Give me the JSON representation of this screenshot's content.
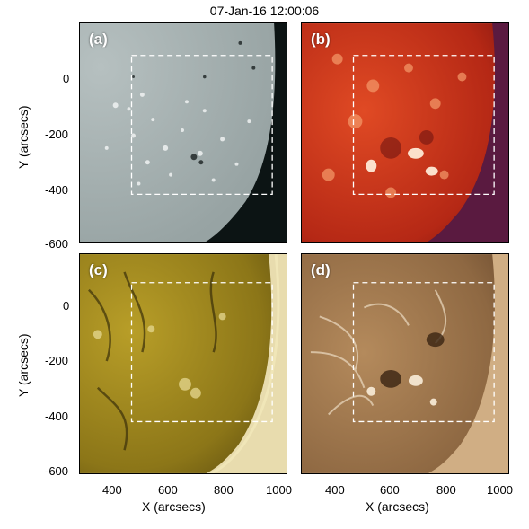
{
  "title": "07-Jan-16 12:00:06",
  "panels": [
    {
      "label": "(a)",
      "kind": "magnetogram"
    },
    {
      "label": "(b)",
      "kind": "euv-red"
    },
    {
      "label": "(c)",
      "kind": "euv-yellow"
    },
    {
      "label": "(d)",
      "kind": "euv-brown"
    }
  ],
  "axes": {
    "ylabel": "Y (arcsecs)",
    "xlabel": "X (arcsecs)",
    "yticks": [
      "0",
      "-200",
      "-400",
      "-600"
    ],
    "xticks": [
      "400",
      "600",
      "800",
      "1000"
    ]
  },
  "colors": {
    "magnetogram_bg": "#a9b4b4",
    "red_bg": "#c8331b",
    "yellow_bg": "#a08a1c",
    "brown_bg": "#a57a4e"
  }
}
